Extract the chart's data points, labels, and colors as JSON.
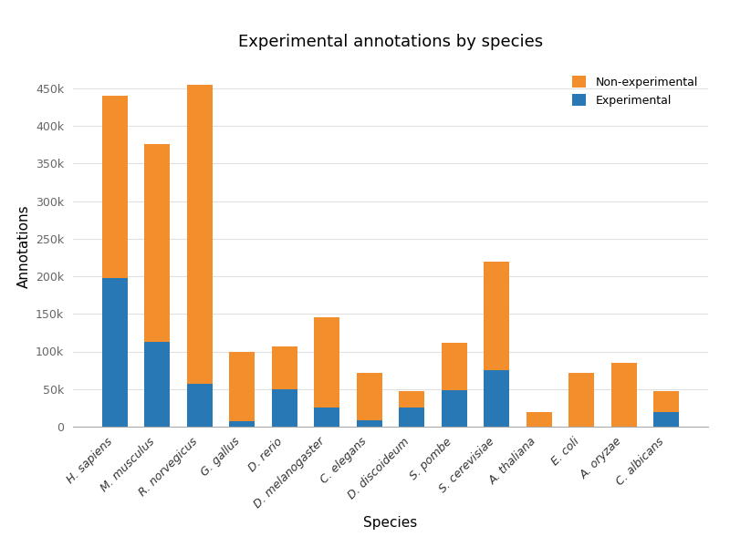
{
  "species": [
    "H. sapiens",
    "M. musculus",
    "R. norvegicus",
    "G. gallus",
    "D. rerio",
    "D. melanogaster",
    "C. elegans",
    "D. discoideum",
    "S. pombe",
    "S. cerevisiae",
    "A. thaliana",
    "E. coli",
    "A. oryzae",
    "C. albicans"
  ],
  "experimental": [
    197000,
    113000,
    57000,
    7000,
    50000,
    25000,
    8000,
    25000,
    48000,
    75000,
    0,
    0,
    0,
    20000
  ],
  "non_experimental": [
    243000,
    263000,
    398000,
    93000,
    57000,
    120000,
    63000,
    22000,
    63000,
    145000,
    20000,
    72000,
    85000,
    27000
  ],
  "color_experimental": "#2878b5",
  "color_non_experimental": "#f28e2b",
  "title": "Experimental annotations by species",
  "xlabel": "Species",
  "ylabel": "Annotations",
  "background_color": "#ffffff",
  "grid_color": "#e0e0e0"
}
